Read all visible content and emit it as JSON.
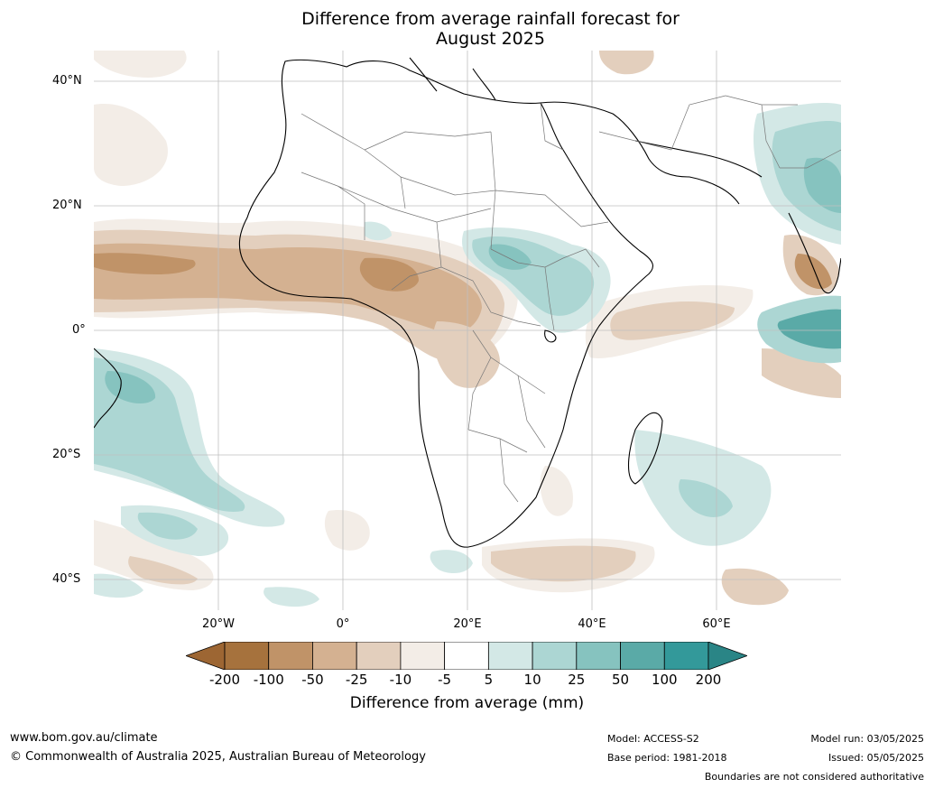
{
  "title_line1": "Difference from average rainfall forecast for",
  "title_line2": "August 2025",
  "lat_labels": [
    "40°N",
    "20°N",
    "0°",
    "20°S",
    "40°S"
  ],
  "lon_labels": [
    "20°W",
    "0°",
    "20°E",
    "40°E",
    "60°E"
  ],
  "colorbar": {
    "ticks": [
      "-200",
      "-100",
      "-50",
      "-25",
      "-10",
      "-5",
      "5",
      "10",
      "25",
      "50",
      "100",
      "200"
    ],
    "colors": [
      "#a6723d",
      "#c09368",
      "#d4b191",
      "#e3cfbd",
      "#f3ede7",
      "#ffffff",
      "#d3e8e6",
      "#acd6d3",
      "#86c3bf",
      "#5aaaa7",
      "#33999a"
    ],
    "low_extend_color": "#9d6633",
    "high_extend_color": "#2a8586",
    "label": "Difference from average (mm)"
  },
  "footer": {
    "url": "www.bom.gov.au/climate",
    "copyright": "© Commonwealth of Australia 2025, Australian Bureau of Meteorology",
    "model": "Model: ACCESS-S2",
    "base_period": "Base period: 1981-2018",
    "model_run": "Model run: 03/05/2025",
    "issued": "Issued: 05/05/2025",
    "disclaimer": "Boundaries are not considered authoritative"
  }
}
